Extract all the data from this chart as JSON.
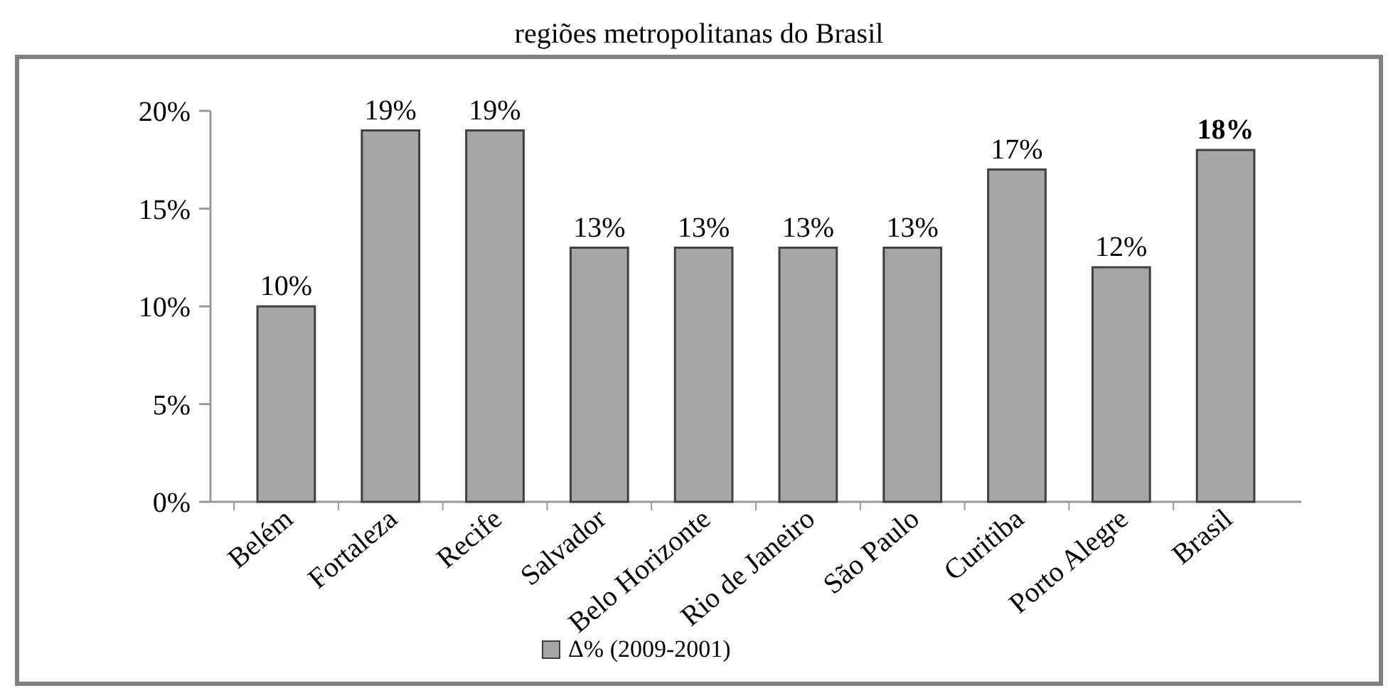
{
  "chart_data": {
    "type": "bar",
    "title": "regiões metropolitanas do Brasil",
    "categories": [
      "Belém",
      "Fortaleza",
      "Recife",
      "Salvador",
      "Belo Horizonte",
      "Rio de Janeiro",
      "São Paulo",
      "Curitiba",
      "Porto Alegre",
      "Brasil"
    ],
    "series": [
      {
        "name": "Δ% (2009-2001)",
        "color": "#a6a6a6",
        "values": [
          10,
          19,
          19,
          13,
          13,
          13,
          13,
          17,
          12,
          18
        ],
        "value_labels": [
          "10%",
          "19%",
          "19%",
          "13%",
          "13%",
          "13%",
          "13%",
          "17%",
          "12%",
          "18%"
        ]
      }
    ],
    "ylim": [
      0,
      20
    ],
    "yticks": [
      {
        "value": 0,
        "label": "0%"
      },
      {
        "value": 5,
        "label": "5%"
      },
      {
        "value": 10,
        "label": "10%"
      },
      {
        "value": 15,
        "label": "15%"
      },
      {
        "value": 20,
        "label": "20%"
      }
    ],
    "legend": "bottom",
    "grid": false
  }
}
